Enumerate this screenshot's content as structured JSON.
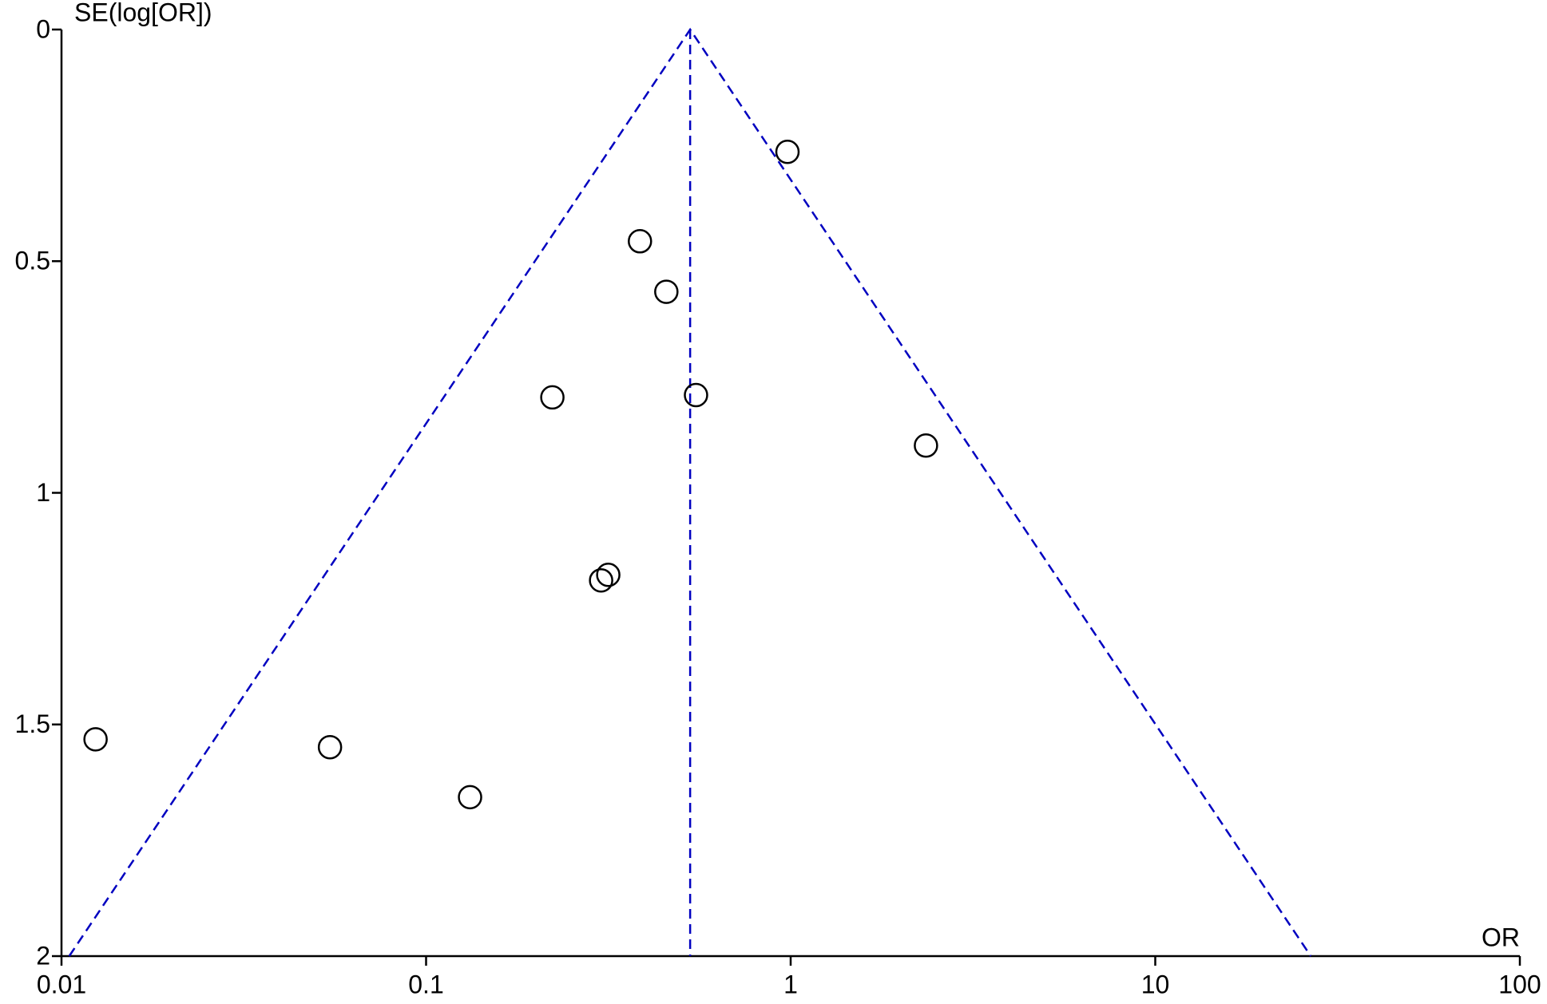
{
  "chart_data": {
    "type": "scatter",
    "x_label": "OR",
    "y_label": "SE(log[OR])",
    "xlim": [
      0.01,
      100
    ],
    "xticks": [
      0.01,
      0.1,
      1,
      10,
      100
    ],
    "x_log_scale": true,
    "ylim": [
      0,
      2
    ],
    "yticks": [
      0,
      0.5,
      1,
      1.5,
      2
    ],
    "y_reversed": true,
    "grid": false,
    "series": [
      {
        "color": "#000000",
        "x": [
          0.98,
          0.386,
          0.456,
          0.222,
          0.55,
          2.35,
          0.316,
          0.302,
          0.0124,
          0.0545,
          0.132
        ],
        "values": [
          0.264,
          0.457,
          0.566,
          0.794,
          0.789,
          0.898,
          1.177,
          1.189,
          1.532,
          1.549,
          1.657
        ]
      }
    ],
    "reference_lines": [
      {
        "color": "#0000c0",
        "x": [
          0.0105,
          0.53,
          26.7
        ],
        "values": [
          2,
          0,
          2
        ]
      },
      {
        "color": "#0000c0",
        "x": [
          0.53,
          0.53
        ],
        "values": [
          0,
          2
        ]
      }
    ]
  }
}
